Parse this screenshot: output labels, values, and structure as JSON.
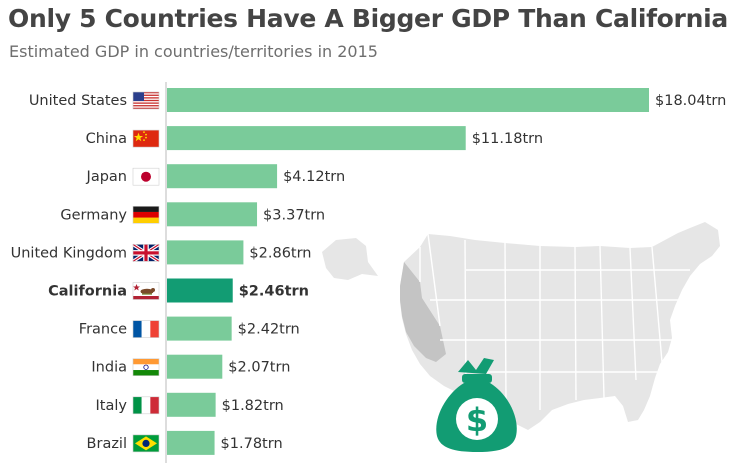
{
  "title": "Only 5 Countries Have A Bigger GDP Than California",
  "subtitle": "Estimated GDP in countries/territories in 2015",
  "colors": {
    "bar": "#7acb9a",
    "highlight": "#129c73",
    "map": "#e6e6e6",
    "map_highlight": "#c4c4c4",
    "bag": "#129c73"
  },
  "icons": {
    "map": "us-map-icon",
    "money_bag": "money-bag-dollar-icon"
  },
  "chart_data": {
    "type": "bar",
    "orientation": "horizontal",
    "categories": [
      "United States",
      "China",
      "Japan",
      "Germany",
      "United Kingdom",
      "California",
      "France",
      "India",
      "Italy",
      "Brazil"
    ],
    "values": [
      18.04,
      11.18,
      4.12,
      3.37,
      2.86,
      2.46,
      2.42,
      2.07,
      1.82,
      1.78
    ],
    "value_labels": [
      "$18.04trn",
      "$11.18trn",
      "$4.12trn",
      "$3.37trn",
      "$2.86trn",
      "$2.46trn",
      "$2.42trn",
      "$2.07trn",
      "$1.82trn",
      "$1.78trn"
    ],
    "highlight": "California",
    "flags": [
      "us-flag-icon",
      "china-flag-icon",
      "japan-flag-icon",
      "germany-flag-icon",
      "uk-flag-icon",
      "california-flag-icon",
      "france-flag-icon",
      "india-flag-icon",
      "italy-flag-icon",
      "brazil-flag-icon"
    ],
    "xlim": [
      0,
      18.04
    ],
    "grid": false,
    "legend": "none"
  }
}
